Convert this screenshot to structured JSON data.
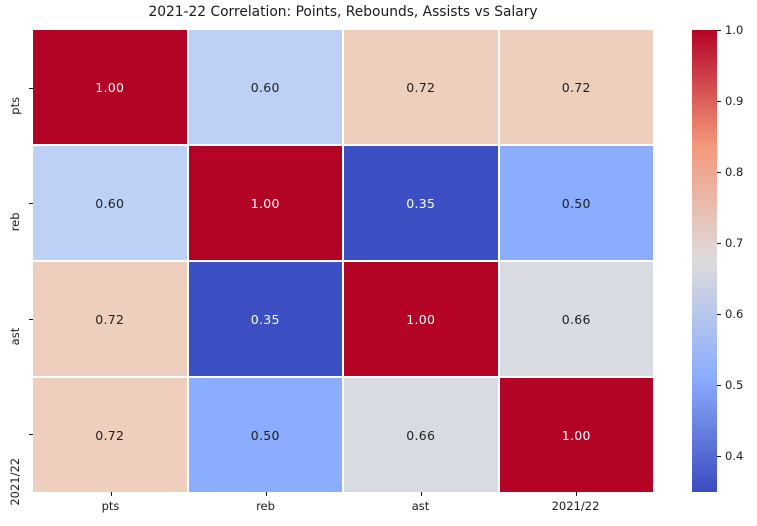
{
  "title": "2021-22 Correlation: Points, Rebounds, Assists vs Salary",
  "chart_data": {
    "type": "heatmap",
    "title": "2021-22 Correlation: Points, Rebounds, Assists vs Salary",
    "categories": [
      "pts",
      "reb",
      "ast",
      "2021/22"
    ],
    "x_tick_labels": [
      "pts",
      "reb",
      "ast",
      "2021/22"
    ],
    "y_tick_labels": [
      "pts",
      "reb",
      "ast",
      "2021/22"
    ],
    "matrix": [
      [
        1.0,
        0.6,
        0.72,
        0.72
      ],
      [
        0.6,
        1.0,
        0.35,
        0.5
      ],
      [
        0.72,
        0.35,
        1.0,
        0.66
      ],
      [
        0.72,
        0.5,
        0.66,
        1.0
      ]
    ],
    "cell_labels": [
      [
        "1.00",
        "0.60",
        "0.72",
        "0.72"
      ],
      [
        "0.60",
        "1.00",
        "0.35",
        "0.50"
      ],
      [
        "0.72",
        "0.35",
        "1.00",
        "0.66"
      ],
      [
        "0.72",
        "0.50",
        "0.66",
        "1.00"
      ]
    ],
    "cell_colors": [
      [
        "#b40426",
        "#bdd0f5",
        "#eecfbe",
        "#eecfbe"
      ],
      [
        "#bdd0f5",
        "#b40426",
        "#3d50c3",
        "#8badfd"
      ],
      [
        "#eecfbe",
        "#3d50c3",
        "#b40426",
        "#d8dce2"
      ],
      [
        "#eecfbe",
        "#8badfd",
        "#d8dce2",
        "#b40426"
      ]
    ],
    "colormap": "coolwarm",
    "vmin": 0.35,
    "vmax": 1.0,
    "grid_line_color": "#ffffff",
    "legend_position": "right",
    "colorbar": {
      "tick_labels": [
        "1.0",
        "0.9",
        "0.8",
        "0.7",
        "0.6",
        "0.5",
        "0.4"
      ],
      "tick_values": [
        1.0,
        0.9,
        0.8,
        0.7,
        0.6,
        0.5,
        0.4
      ],
      "gradient_top_to_bottom": [
        "#b40426",
        "#f4987a",
        "#dddcdc",
        "#8badfd",
        "#3b4cc0"
      ]
    }
  },
  "colors": {
    "background": "#ffffff",
    "text": "#1a1a1a",
    "annotation_light": "#ffffff",
    "annotation_dark": "#1f1f1f"
  }
}
